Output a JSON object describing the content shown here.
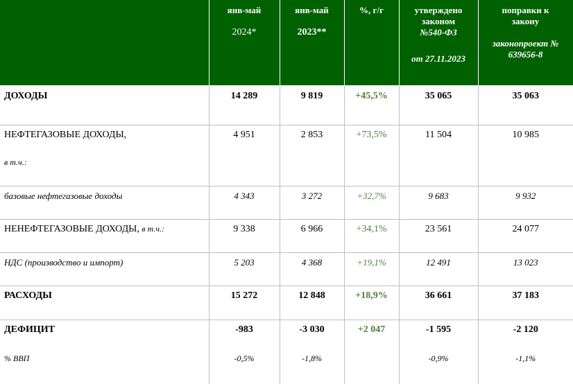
{
  "header": {
    "col1": {
      "line1": "янв-май",
      "line2": "2024*"
    },
    "col2": {
      "line1": "янв-май",
      "line2": "2023**"
    },
    "col3": {
      "line1": "%, г/г"
    },
    "col4": {
      "line1": "утверждено",
      "line2": "законом",
      "line3": "№540-ФЗ",
      "line4": "от 27.11.2023"
    },
    "col5": {
      "line1": "поправки к",
      "line2": "закону",
      "line3": "законопроект №",
      "line4": "639656-8"
    }
  },
  "rows": [
    {
      "label": "ДОХОДЫ",
      "v1": "14 289",
      "v2": "9 819",
      "v3": "+45,5%",
      "v4": "35 065",
      "v5": "35 063"
    },
    {
      "label": "НЕФТЕГАЗОВЫЕ ДОХОДЫ,",
      "note": "в т.ч.:",
      "v1": "4 951",
      "v2": "2 853",
      "v3": "+73,5%",
      "v4": "11 504",
      "v5": "10 985"
    },
    {
      "label": "базовые нефтегазовые доходы",
      "v1": "4 343",
      "v2": "3 272",
      "v3": "+32,7%",
      "v4": "9 683",
      "v5": "9 932"
    },
    {
      "label": "НЕНЕФТЕГАЗОВЫЕ ДОХОДЫ,",
      "note": "в т.ч.:",
      "v1": "9 338",
      "v2": "6 966",
      "v3": "+34,1%",
      "v4": "23 561",
      "v5": "24 077"
    },
    {
      "label": "НДС (производство и импорт)",
      "v1": "5 203",
      "v2": "4 368",
      "v3": "+19,1%",
      "v4": "12 491",
      "v5": "13 023"
    },
    {
      "label": "РАСХОДЫ",
      "v1": "15 272",
      "v2": "12 848",
      "v3": "+18,9%",
      "v4": "36 661",
      "v5": "37 183"
    },
    {
      "label": "ДЕФИЦИТ",
      "v1": "-983",
      "v2": "-3 030",
      "v3": "+2 047",
      "v4": "-1 595",
      "v5": "-2 120"
    },
    {
      "label": "% ВВП",
      "v1": "-0,5%",
      "v2": "-1,8%",
      "v3": "",
      "v4": "-0,9%",
      "v5": "-1,1%"
    }
  ]
}
